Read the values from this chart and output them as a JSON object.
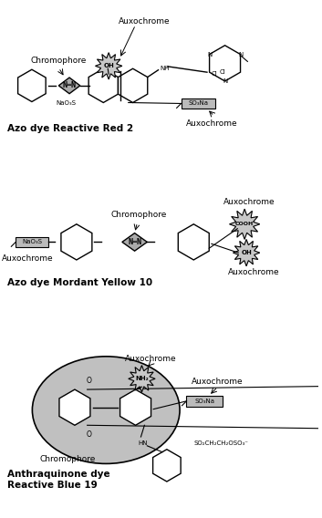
{
  "fig_width": 3.53,
  "fig_height": 5.68,
  "dpi": 100,
  "bg_color": "#ffffff",
  "title1": "Azo dye Reactive Red 2",
  "title2": "Azo dye Mordant Yellow 10",
  "title3_line1": "Anthraquinone dye",
  "title3_line2": "Reactive Blue 19",
  "gray_fill": "#aaaaaa",
  "light_gray": "#c0c0c0",
  "chromophore_fill": "#aaaaaa",
  "starburst_fill": "#c8c8c8",
  "rect_fill": "#bbbbbb",
  "blob_fill": "#c0c0c0"
}
